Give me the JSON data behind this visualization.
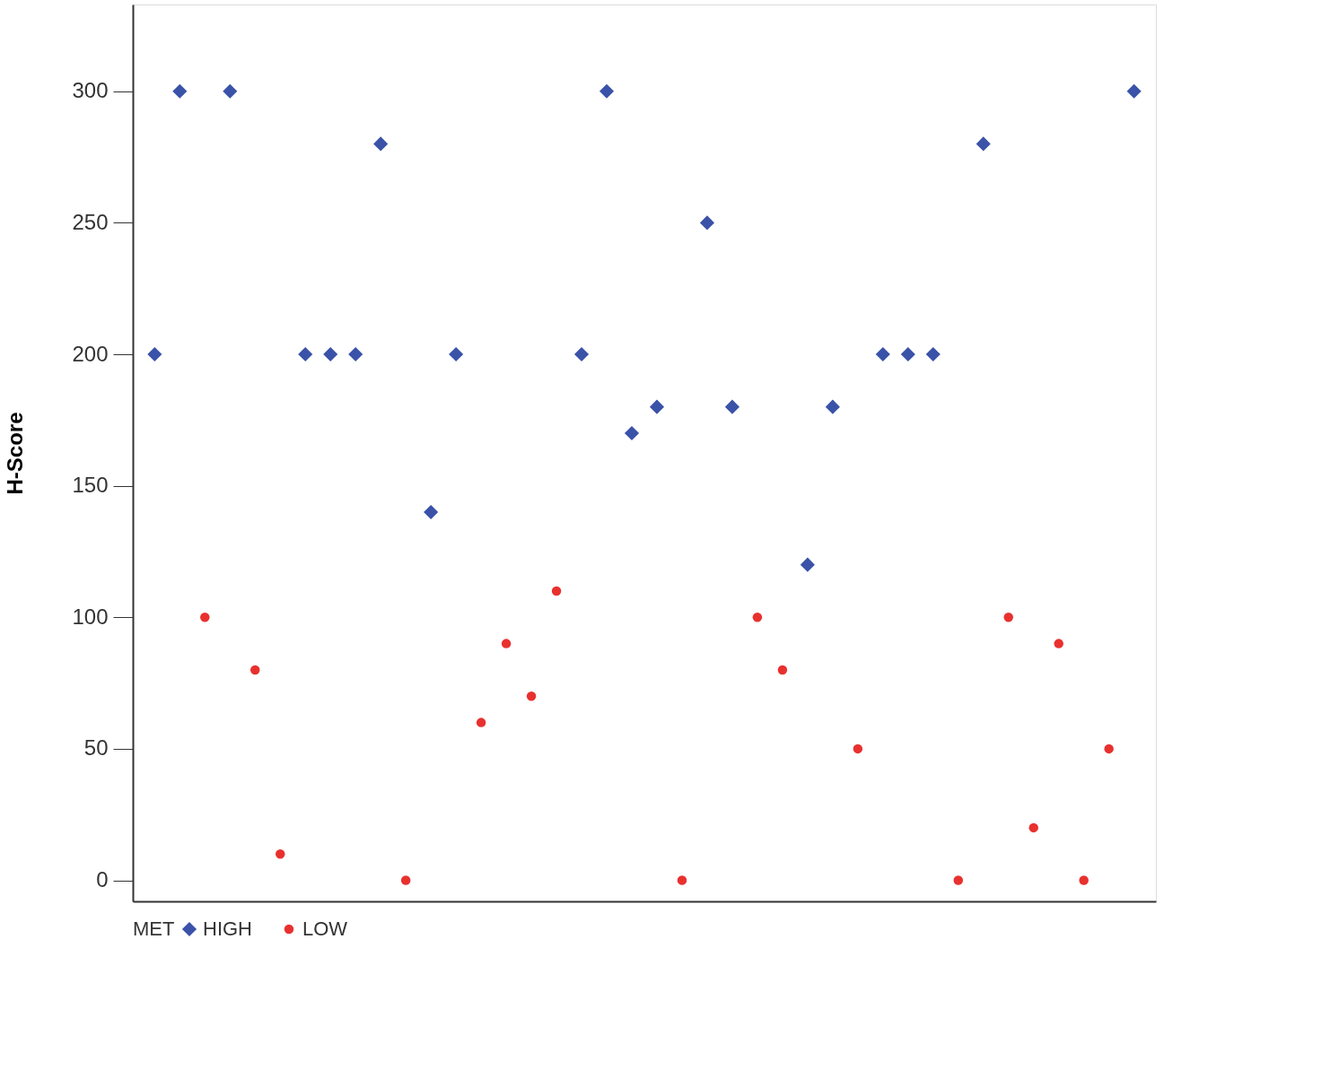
{
  "chart_data": {
    "type": "scatter",
    "ylabel": "H-Score",
    "legend_title": "MET",
    "legend": "bottom",
    "grid": false,
    "tick_labels": "y",
    "categories": [
      null,
      null,
      null,
      null,
      null,
      null,
      null,
      null,
      null,
      null,
      null,
      null,
      null,
      null,
      null,
      null,
      null,
      null,
      null,
      null,
      null,
      null,
      null,
      null,
      null,
      null,
      null,
      null,
      null,
      null,
      null,
      null,
      null,
      null,
      null,
      null,
      null,
      null,
      null,
      null
    ],
    "ylim": [
      -8,
      333
    ],
    "yticks": [
      0,
      50,
      100,
      150,
      200,
      250,
      300
    ],
    "series": [
      {
        "name": "HIGH",
        "color": "#3a52a8",
        "marker": "diamond",
        "values": [
          200,
          300,
          null,
          300,
          null,
          null,
          200,
          200,
          200,
          280,
          null,
          140,
          200,
          null,
          null,
          null,
          null,
          200,
          300,
          170,
          180,
          null,
          250,
          180,
          null,
          null,
          120,
          180,
          null,
          200,
          200,
          200,
          null,
          280,
          null,
          null,
          null,
          null,
          null,
          300
        ]
      },
      {
        "name": "LOW",
        "color": "#e8312f",
        "marker": "circle",
        "values": [
          null,
          null,
          100,
          null,
          80,
          10,
          null,
          null,
          null,
          null,
          0,
          null,
          null,
          60,
          90,
          70,
          110,
          null,
          null,
          null,
          null,
          0,
          null,
          null,
          100,
          80,
          null,
          null,
          50,
          null,
          null,
          null,
          0,
          null,
          100,
          20,
          90,
          0,
          50,
          null
        ]
      }
    ]
  }
}
